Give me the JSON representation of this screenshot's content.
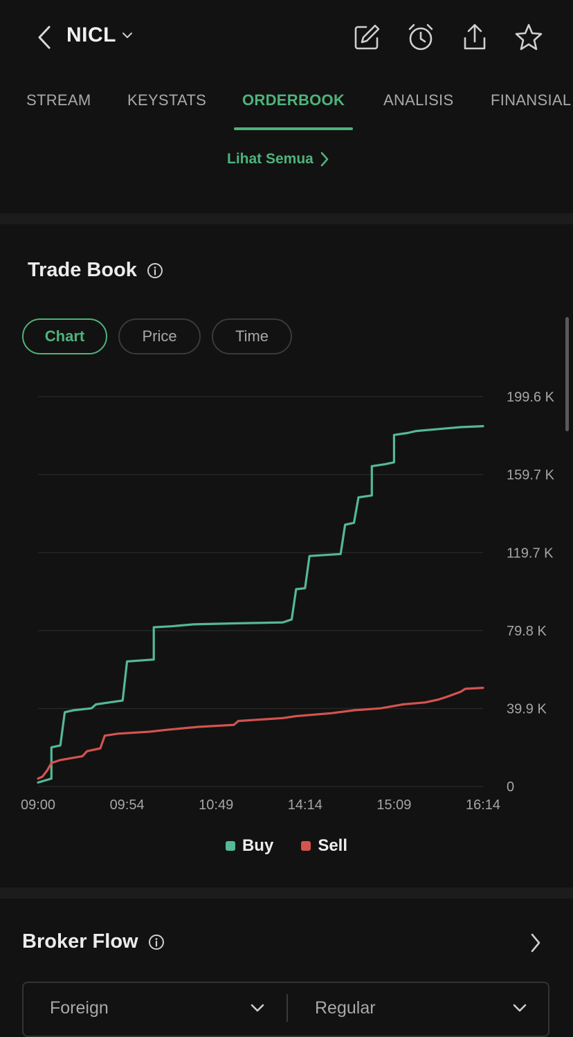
{
  "header": {
    "ticker": "NICL",
    "icons": [
      "back-arrow-icon",
      "chevron-down-icon",
      "edit-icon",
      "alarm-icon",
      "share-icon",
      "star-icon"
    ]
  },
  "tabs": [
    {
      "label": "STREAM"
    },
    {
      "label": "KEYSTATS"
    },
    {
      "label": "ORDERBOOK",
      "active": true
    },
    {
      "label": "ANALISIS"
    },
    {
      "label": "FINANSIAL"
    }
  ],
  "orderbook": {
    "see_all": "Lihat Semua"
  },
  "trade_book": {
    "title": "Trade Book",
    "chips": [
      {
        "label": "Chart",
        "active": true
      },
      {
        "label": "Price"
      },
      {
        "label": "Time"
      }
    ]
  },
  "colors": {
    "accent": "#4eb37c",
    "buy": "#55b896",
    "sell": "#d4534f",
    "background": "#121212"
  },
  "chart_data": {
    "type": "line",
    "title": "",
    "xlabel": "",
    "ylabel": "",
    "x_ticks": [
      "09:00",
      "09:54",
      "10:49",
      "14:14",
      "15:09",
      "16:14"
    ],
    "y_ticks": [
      "0",
      "39.9 K",
      "79.8 K",
      "119.7 K",
      "159.7 K",
      "199.6 K"
    ],
    "y_tick_values": [
      0,
      39900,
      79800,
      119700,
      159700,
      199600
    ],
    "ylim": [
      0,
      199600
    ],
    "legend": "bottom-center",
    "grid": true,
    "series": [
      {
        "name": "Buy",
        "color": "#55b896",
        "points": [
          [
            0,
            2000
          ],
          [
            0.03,
            4000
          ],
          [
            0.03,
            20000
          ],
          [
            0.05,
            21000
          ],
          [
            0.06,
            38000
          ],
          [
            0.08,
            39000
          ],
          [
            0.12,
            40000
          ],
          [
            0.13,
            42000
          ],
          [
            0.19,
            44000
          ],
          [
            0.2,
            64000
          ],
          [
            0.26,
            65000
          ],
          [
            0.26,
            81500
          ],
          [
            0.3,
            82000
          ],
          [
            0.35,
            83000
          ],
          [
            0.44,
            83500
          ],
          [
            0.55,
            84000
          ],
          [
            0.57,
            85500
          ],
          [
            0.58,
            101000
          ],
          [
            0.6,
            101500
          ],
          [
            0.61,
            118000
          ],
          [
            0.68,
            119000
          ],
          [
            0.69,
            134000
          ],
          [
            0.71,
            135000
          ],
          [
            0.72,
            148000
          ],
          [
            0.75,
            149000
          ],
          [
            0.75,
            164000
          ],
          [
            0.78,
            165000
          ],
          [
            0.8,
            166000
          ],
          [
            0.8,
            180000
          ],
          [
            0.83,
            181000
          ],
          [
            0.85,
            182000
          ],
          [
            0.9,
            183000
          ],
          [
            0.95,
            184000
          ],
          [
            1,
            184500
          ]
        ]
      },
      {
        "name": "Sell",
        "color": "#d4534f",
        "points": [
          [
            0,
            4000
          ],
          [
            0.01,
            5000
          ],
          [
            0.02,
            8000
          ],
          [
            0.03,
            12000
          ],
          [
            0.05,
            13500
          ],
          [
            0.1,
            15500
          ],
          [
            0.11,
            18000
          ],
          [
            0.14,
            19500
          ],
          [
            0.15,
            26000
          ],
          [
            0.18,
            27000
          ],
          [
            0.25,
            28000
          ],
          [
            0.29,
            29000
          ],
          [
            0.36,
            30500
          ],
          [
            0.44,
            31500
          ],
          [
            0.45,
            33500
          ],
          [
            0.55,
            35000
          ],
          [
            0.58,
            36000
          ],
          [
            0.66,
            37500
          ],
          [
            0.71,
            39000
          ],
          [
            0.74,
            39500
          ],
          [
            0.77,
            40000
          ],
          [
            0.82,
            42000
          ],
          [
            0.87,
            43000
          ],
          [
            0.9,
            44500
          ],
          [
            0.92,
            46000
          ],
          [
            0.95,
            48500
          ],
          [
            0.96,
            50000
          ],
          [
            1,
            50500
          ]
        ]
      }
    ]
  },
  "broker_flow": {
    "title": "Broker Flow",
    "filter_1": "Foreign",
    "filter_2": "Regular"
  }
}
